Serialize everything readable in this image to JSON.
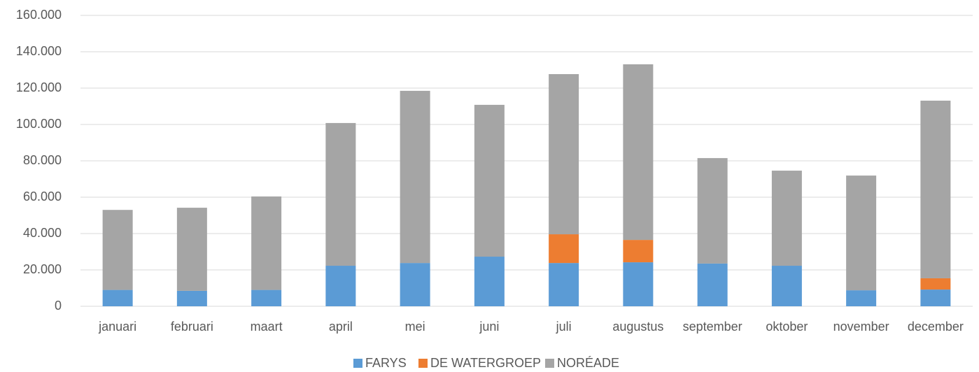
{
  "chart_data": {
    "type": "stacked_bar",
    "categories": [
      "januari",
      "februari",
      "maart",
      "april",
      "mei",
      "juni",
      "juli",
      "augustus",
      "september",
      "oktober",
      "november",
      "december"
    ],
    "series": [
      {
        "name": "FARYS",
        "color": "#5b9bd5",
        "values": [
          9000,
          8500,
          9000,
          22300,
          23800,
          27300,
          23800,
          24200,
          23500,
          22300,
          8800,
          9200
        ]
      },
      {
        "name": "DE WATERGROEP",
        "color": "#ed7d31",
        "values": [
          0,
          0,
          0,
          0,
          0,
          0,
          15800,
          12300,
          0,
          0,
          0,
          6200
        ]
      },
      {
        "name": "NORÉADE",
        "color": "#a5a5a5",
        "values": [
          44000,
          45700,
          51400,
          78500,
          94700,
          83500,
          88100,
          96600,
          58000,
          52300,
          63100,
          97700
        ]
      }
    ],
    "ylim": [
      0,
      160000
    ],
    "yticks": [
      0,
      {
        "value": 20000,
        "label": "20.000"
      },
      {
        "value": 40000,
        "label": "40.000"
      },
      {
        "value": 60000,
        "label": "60.000"
      },
      {
        "value": 80000,
        "label": "80.000"
      },
      {
        "value": 100000,
        "label": "100.000"
      },
      {
        "value": 120000,
        "label": "120.000"
      },
      {
        "value": 140000,
        "label": "140.000"
      },
      {
        "value": 160000,
        "label": "160.000"
      }
    ],
    "grid": true
  }
}
